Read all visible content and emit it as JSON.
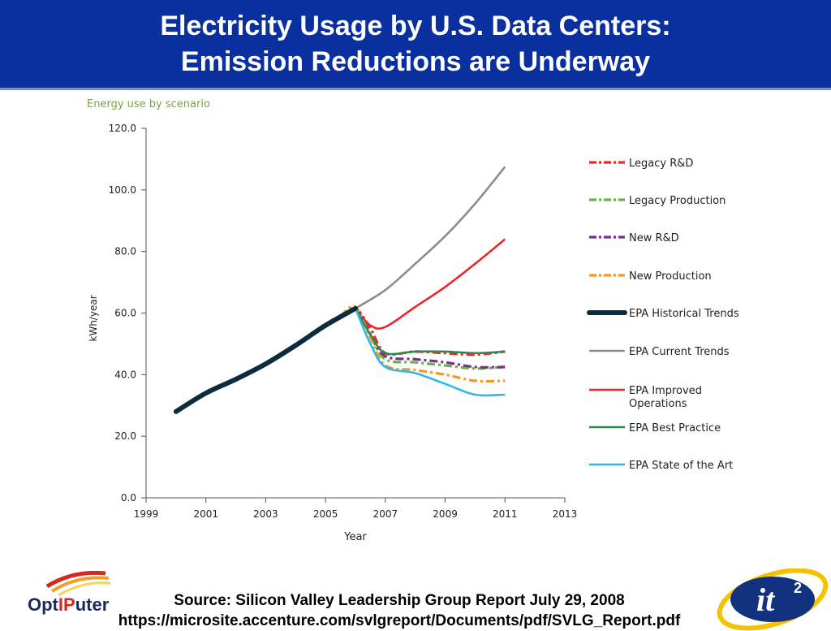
{
  "header": {
    "title_line1": "Electricity Usage by U.S. Data Centers:",
    "title_line2": "Emission Reductions are Underway",
    "background_color": "#0a2f9e"
  },
  "footer": {
    "source_line1": "Source: Silicon Valley Leadership Group Report July 29, 2008",
    "source_line2": "https://microsite.accenture.com/svlgreport/Documents/pdf/SVLG_Report.pdf",
    "logo_left_text": "OptIPuter",
    "logo_right_text": "it2"
  },
  "chart_data": {
    "type": "line",
    "title": "Energy use by scenario",
    "xlabel": "Year",
    "ylabel": "kWh/year",
    "xlim": [
      1999,
      2013
    ],
    "ylim": [
      0,
      120
    ],
    "x_ticks": [
      "1999",
      "2001",
      "2003",
      "2005",
      "2007",
      "2009",
      "2011",
      "2013"
    ],
    "y_ticks": [
      "0.0",
      "20.0",
      "40.0",
      "60.0",
      "80.0",
      "100.0",
      "120.0"
    ],
    "grid": false,
    "legend_position": "right",
    "series": [
      {
        "name": "Legacy R&D",
        "color": "#e8282b",
        "style": "dashdot",
        "points": [
          [
            2005.5,
            59
          ],
          [
            2006,
            61.5
          ],
          [
            2006.5,
            55
          ],
          [
            2007,
            47
          ],
          [
            2008,
            47.5
          ],
          [
            2009,
            47
          ],
          [
            2010,
            46.5
          ],
          [
            2011,
            47.5
          ]
        ]
      },
      {
        "name": "Legacy Production",
        "color": "#6ab04c",
        "style": "dashdot",
        "points": [
          [
            2005.5,
            59
          ],
          [
            2006,
            61.5
          ],
          [
            2006.5,
            53
          ],
          [
            2007,
            45
          ],
          [
            2008,
            44
          ],
          [
            2009,
            43
          ],
          [
            2010,
            42
          ],
          [
            2011,
            42.5
          ]
        ]
      },
      {
        "name": "New R&D",
        "color": "#7b2d8e",
        "style": "dashdot",
        "points": [
          [
            2005.5,
            59
          ],
          [
            2006,
            61.5
          ],
          [
            2006.5,
            53
          ],
          [
            2007,
            46
          ],
          [
            2008,
            45
          ],
          [
            2009,
            44
          ],
          [
            2010,
            42.5
          ],
          [
            2011,
            42.5
          ]
        ]
      },
      {
        "name": "New Production",
        "color": "#f39a1e",
        "style": "dashdot",
        "points": [
          [
            2005.5,
            59
          ],
          [
            2006,
            62
          ],
          [
            2006.5,
            52
          ],
          [
            2007,
            43
          ],
          [
            2008,
            41.5
          ],
          [
            2009,
            40
          ],
          [
            2010,
            38
          ],
          [
            2011,
            38
          ]
        ]
      },
      {
        "name": "EPA Historical Trends",
        "color": "#0d2b3e",
        "style": "thick",
        "points": [
          [
            2000,
            28
          ],
          [
            2001,
            34
          ],
          [
            2002,
            38.5
          ],
          [
            2003,
            43.5
          ],
          [
            2004,
            49.5
          ],
          [
            2005,
            56
          ],
          [
            2006,
            61.5
          ]
        ]
      },
      {
        "name": "EPA Current Trends",
        "color": "#8c8c8c",
        "style": "solid",
        "points": [
          [
            2006,
            61.5
          ],
          [
            2007,
            67.5
          ],
          [
            2008,
            76
          ],
          [
            2009,
            85
          ],
          [
            2010,
            95.5
          ],
          [
            2011,
            107.5
          ]
        ]
      },
      {
        "name": "EPA Improved Operations",
        "color": "#e8282b",
        "style": "solid",
        "points": [
          [
            2006,
            61.5
          ],
          [
            2006.5,
            56
          ],
          [
            2007,
            55.5
          ],
          [
            2008,
            62
          ],
          [
            2009,
            68.5
          ],
          [
            2010,
            76
          ],
          [
            2011,
            84
          ]
        ]
      },
      {
        "name": "EPA Best Practice",
        "color": "#2d8a4e",
        "style": "solid",
        "points": [
          [
            2006,
            61.5
          ],
          [
            2006.5,
            53
          ],
          [
            2007,
            47
          ],
          [
            2008,
            47.5
          ],
          [
            2009,
            47.5
          ],
          [
            2010,
            47
          ],
          [
            2011,
            47.5
          ]
        ]
      },
      {
        "name": "EPA State of the Art",
        "color": "#2fb6ea",
        "style": "solid",
        "points": [
          [
            2006,
            61.5
          ],
          [
            2006.5,
            50
          ],
          [
            2007,
            42.5
          ],
          [
            2008,
            40.5
          ],
          [
            2009,
            37
          ],
          [
            2010,
            33.5
          ],
          [
            2011,
            33.5
          ]
        ]
      }
    ],
    "legend": [
      {
        "label_lines": [
          "Legacy R&D"
        ],
        "color": "#e8282b",
        "style": "dashdot"
      },
      {
        "label_lines": [
          "Legacy Production"
        ],
        "color": "#6ab04c",
        "style": "dashdot"
      },
      {
        "label_lines": [
          "New R&D"
        ],
        "color": "#7b2d8e",
        "style": "dashdot"
      },
      {
        "label_lines": [
          "New Production"
        ],
        "color": "#f39a1e",
        "style": "dashdot"
      },
      {
        "label_lines": [
          "EPA Historical Trends"
        ],
        "color": "#0d2b3e",
        "style": "thick"
      },
      {
        "label_lines": [
          "EPA Current Trends"
        ],
        "color": "#8c8c8c",
        "style": "solid"
      },
      {
        "label_lines": [
          "EPA Improved",
          "Operations"
        ],
        "color": "#e8282b",
        "style": "solid"
      },
      {
        "label_lines": [
          "EPA Best Practice"
        ],
        "color": "#2d8a4e",
        "style": "solid"
      },
      {
        "label_lines": [
          "EPA State of the Art"
        ],
        "color": "#2fb6ea",
        "style": "solid"
      }
    ]
  }
}
